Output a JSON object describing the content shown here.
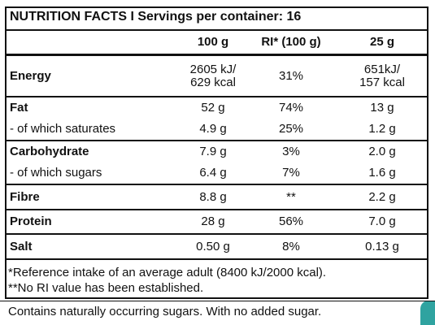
{
  "title": "NUTRITION FACTS I Servings per container: 16",
  "columns": [
    "100 g",
    "RI* (100 g)",
    "25 g"
  ],
  "groups": [
    {
      "rows": [
        {
          "label": "Energy",
          "cells": [
            [
              "2605 kJ/",
              "629 kcal"
            ],
            [
              "31%"
            ],
            [
              "651kJ/",
              "157 kcal"
            ]
          ]
        }
      ]
    },
    {
      "rows": [
        {
          "label": "Fat",
          "cells": [
            [
              "52 g"
            ],
            [
              "74%"
            ],
            [
              "13 g"
            ]
          ]
        },
        {
          "label": "- of which saturates",
          "cells": [
            [
              "4.9 g"
            ],
            [
              "25%"
            ],
            [
              "1.2 g"
            ]
          ]
        }
      ]
    },
    {
      "rows": [
        {
          "label": "Carbohydrate",
          "cells": [
            [
              "7.9 g"
            ],
            [
              "3%"
            ],
            [
              "2.0 g"
            ]
          ]
        },
        {
          "label": "- of which sugars",
          "cells": [
            [
              "6.4 g"
            ],
            [
              "7%"
            ],
            [
              "1.6 g"
            ]
          ]
        }
      ]
    },
    {
      "rows": [
        {
          "label": "Fibre",
          "cells": [
            [
              "8.8 g"
            ],
            [
              "**"
            ],
            [
              "2.2 g"
            ]
          ]
        }
      ]
    },
    {
      "rows": [
        {
          "label": "Protein",
          "cells": [
            [
              "28 g"
            ],
            [
              "56%"
            ],
            [
              "7.0 g"
            ]
          ]
        }
      ]
    },
    {
      "rows": [
        {
          "label": "Salt",
          "cells": [
            [
              "0.50 g"
            ],
            [
              "8%"
            ],
            [
              "0.13 g"
            ]
          ]
        }
      ]
    }
  ],
  "footnotes": [
    "*Reference intake of an average adult (8400 kJ/2000 kcal).",
    "**No RI value has been established."
  ],
  "footer": "Contains naturally occurring sugars. With no added sugar."
}
